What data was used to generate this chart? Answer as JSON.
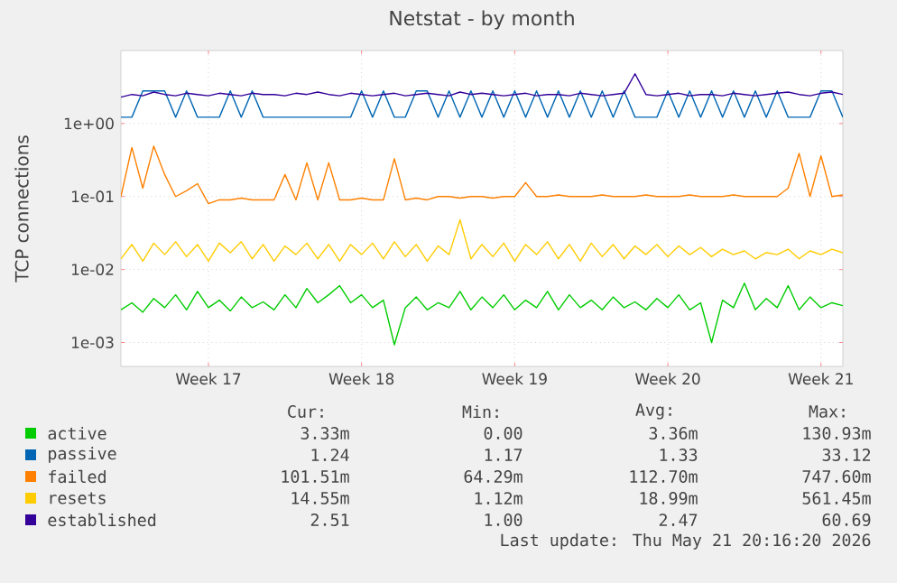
{
  "chart_data": {
    "type": "line",
    "title": "Netstat - by month",
    "ylabel": "TCP connections",
    "log": "y",
    "grid": true,
    "legend": "bottom",
    "categories": [
      null,
      null,
      null,
      null,
      null,
      null,
      null,
      null,
      "Week 17",
      null,
      null,
      null,
      null,
      null,
      null,
      null,
      null,
      null,
      null,
      null,
      null,
      null,
      "Week 18",
      null,
      null,
      null,
      null,
      null,
      null,
      null,
      null,
      null,
      null,
      null,
      null,
      null,
      "Week 19",
      null,
      null,
      null,
      null,
      null,
      null,
      null,
      null,
      null,
      null,
      null,
      null,
      null,
      "Week 20",
      null,
      null,
      null,
      null,
      null,
      null,
      null,
      null,
      null,
      null,
      null,
      null,
      null,
      "Week 21",
      null,
      null
    ],
    "ylim": [
      0.00047,
      10
    ],
    "yticks": [
      {
        "value": 0.001,
        "label": "1e-03"
      },
      {
        "value": 0.01,
        "label": "1e-02"
      },
      {
        "value": 0.1,
        "label": "1e-01"
      },
      {
        "value": 1,
        "label": "1e+00"
      }
    ],
    "annotations": [
      "Cur:",
      "Min:",
      "Avg:",
      "Max:",
      "3.33m",
      "0.00",
      "3.36m",
      "130.93m",
      "1.24",
      "1.17",
      "1.33",
      "33.12",
      "101.51m",
      "64.29m",
      "112.70m",
      "747.60m",
      "14.55m",
      "1.12m",
      "18.99m",
      "561.45m",
      "2.51",
      "1.00",
      "2.47",
      "60.69",
      "Last update: Thu May 21 20:16:20 2026"
    ],
    "series": [
      {
        "name": "active",
        "color": "#00cc00",
        "values": [
          0.0028,
          0.0035,
          0.0026,
          0.004,
          0.003,
          0.0045,
          0.0028,
          0.005,
          0.003,
          0.0038,
          0.0027,
          0.0042,
          0.003,
          0.0036,
          0.0028,
          0.0045,
          0.003,
          0.0055,
          0.0035,
          0.0045,
          0.006,
          0.0035,
          0.0045,
          0.003,
          0.0038,
          0.00093,
          0.003,
          0.0042,
          0.0028,
          0.0035,
          0.003,
          0.005,
          0.0028,
          0.0042,
          0.003,
          0.0045,
          0.0028,
          0.0038,
          0.003,
          0.005,
          0.0028,
          0.0045,
          0.003,
          0.0038,
          0.0028,
          0.0042,
          0.003,
          0.0036,
          0.0028,
          0.004,
          0.003,
          0.0045,
          0.0028,
          0.0035,
          0.001,
          0.0038,
          0.003,
          0.0065,
          0.0028,
          0.004,
          0.003,
          0.006,
          0.0028,
          0.0042,
          0.003,
          0.0035,
          0.0032
        ]
      },
      {
        "name": "passive",
        "color": "#0066b3",
        "values": [
          1.22,
          1.22,
          2.8,
          2.8,
          2.8,
          1.22,
          2.8,
          1.22,
          1.22,
          1.22,
          2.8,
          1.22,
          2.8,
          1.22,
          1.22,
          1.22,
          1.22,
          1.22,
          1.22,
          1.22,
          1.22,
          1.22,
          2.8,
          1.22,
          2.8,
          1.22,
          1.22,
          2.8,
          2.8,
          1.22,
          2.8,
          1.22,
          2.8,
          1.22,
          2.8,
          1.22,
          2.8,
          1.22,
          2.8,
          1.22,
          2.8,
          1.22,
          2.8,
          1.22,
          2.8,
          1.22,
          2.8,
          1.22,
          1.22,
          1.22,
          2.8,
          1.22,
          2.8,
          1.22,
          2.8,
          1.22,
          2.8,
          1.22,
          2.8,
          1.22,
          2.8,
          1.22,
          1.22,
          1.22,
          2.8,
          2.8,
          1.22
        ]
      },
      {
        "name": "failed",
        "color": "#ff8000",
        "values": [
          0.1,
          0.47,
          0.13,
          0.49,
          0.2,
          0.1,
          0.12,
          0.15,
          0.08,
          0.09,
          0.09,
          0.095,
          0.09,
          0.09,
          0.09,
          0.2,
          0.09,
          0.29,
          0.09,
          0.29,
          0.09,
          0.09,
          0.095,
          0.09,
          0.09,
          0.33,
          0.09,
          0.095,
          0.09,
          0.1,
          0.1,
          0.095,
          0.1,
          0.1,
          0.095,
          0.1,
          0.1,
          0.155,
          0.1,
          0.1,
          0.105,
          0.1,
          0.1,
          0.1,
          0.105,
          0.1,
          0.1,
          0.1,
          0.105,
          0.1,
          0.1,
          0.1,
          0.105,
          0.1,
          0.1,
          0.1,
          0.105,
          0.1,
          0.1,
          0.1,
          0.1,
          0.13,
          0.39,
          0.1,
          0.36,
          0.1,
          0.105
        ]
      },
      {
        "name": "resets",
        "color": "#ffcc00",
        "values": [
          0.014,
          0.022,
          0.013,
          0.023,
          0.016,
          0.024,
          0.015,
          0.022,
          0.013,
          0.023,
          0.017,
          0.024,
          0.014,
          0.022,
          0.013,
          0.021,
          0.016,
          0.023,
          0.014,
          0.022,
          0.013,
          0.022,
          0.016,
          0.023,
          0.014,
          0.024,
          0.015,
          0.022,
          0.013,
          0.021,
          0.016,
          0.048,
          0.014,
          0.022,
          0.015,
          0.023,
          0.013,
          0.022,
          0.016,
          0.024,
          0.014,
          0.022,
          0.013,
          0.023,
          0.015,
          0.022,
          0.014,
          0.021,
          0.016,
          0.022,
          0.015,
          0.021,
          0.016,
          0.02,
          0.015,
          0.019,
          0.016,
          0.018,
          0.014,
          0.017,
          0.016,
          0.019,
          0.014,
          0.018,
          0.016,
          0.019,
          0.017
        ]
      },
      {
        "name": "established",
        "color": "#330099",
        "values": [
          2.3,
          2.5,
          2.4,
          2.7,
          2.5,
          2.4,
          2.6,
          2.5,
          2.4,
          2.6,
          2.5,
          2.4,
          2.6,
          2.5,
          2.5,
          2.4,
          2.6,
          2.5,
          2.7,
          2.5,
          2.4,
          2.6,
          2.5,
          2.4,
          2.5,
          2.6,
          2.4,
          2.5,
          2.6,
          2.5,
          2.4,
          2.7,
          2.5,
          2.6,
          2.5,
          2.4,
          2.5,
          2.6,
          2.4,
          2.5,
          2.5,
          2.4,
          2.6,
          2.5,
          2.4,
          2.5,
          2.6,
          4.8,
          2.5,
          2.4,
          2.5,
          2.6,
          2.4,
          2.5,
          2.5,
          2.4,
          2.6,
          2.5,
          2.4,
          2.5,
          2.6,
          2.7,
          2.5,
          2.4,
          2.6,
          2.7,
          2.5
        ]
      }
    ]
  }
}
